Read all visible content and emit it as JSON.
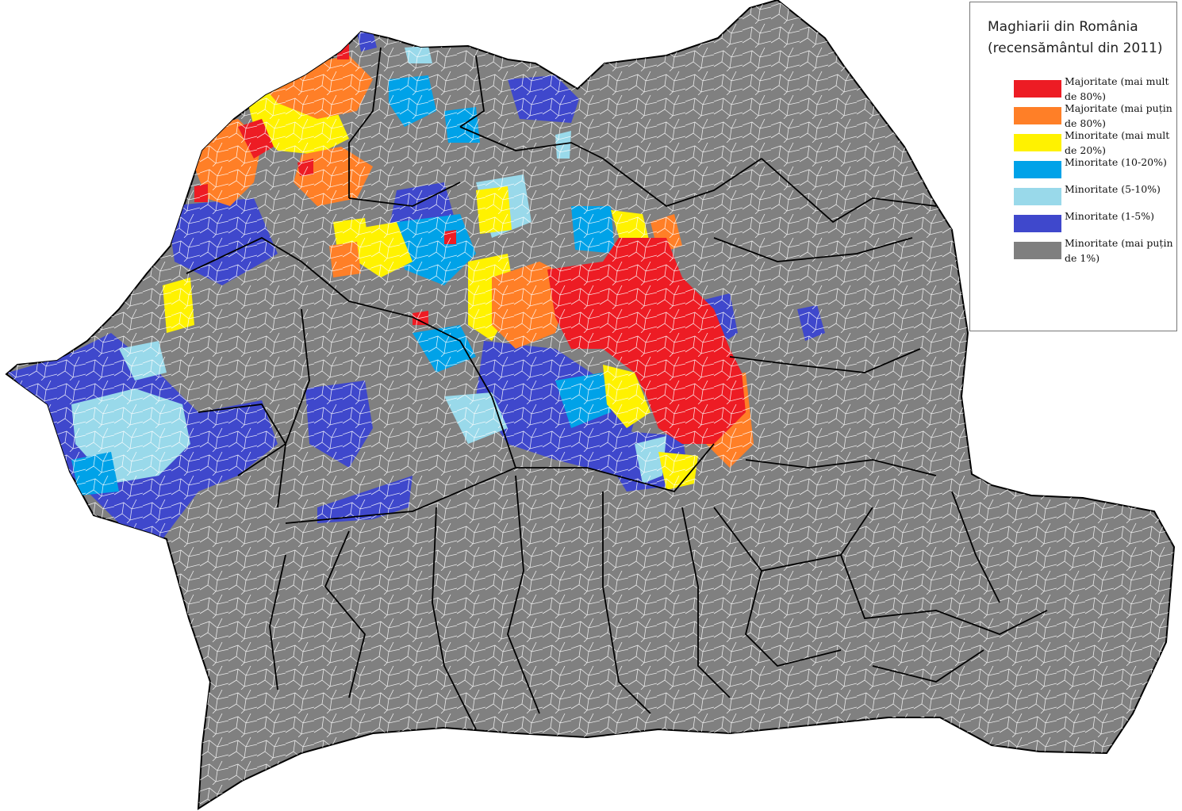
{
  "map": {
    "title_line1": "Maghiarii din România",
    "title_line2": "(recensământul din 2011)",
    "base_color": "#808080",
    "border_color": "#000000",
    "legend": [
      {
        "label": "Majoritate (mai mult de 80%)",
        "color": "#ed1c24"
      },
      {
        "label": "Majoritate (mai puțin de 80%)",
        "color": "#ff7f27"
      },
      {
        "label": "Minoritate (mai mult de 20%)",
        "color": "#fff200"
      },
      {
        "label": "Minoritate (10-20%)",
        "color": "#00a2e8"
      },
      {
        "label": "Minoritate (5-10%)",
        "color": "#99d9ea"
      },
      {
        "label": "Minoritate (1-5%)",
        "color": "#3f48cc"
      },
      {
        "label": "Minoritate (mai puțin de 1%)",
        "color": "#7f7f7f"
      }
    ]
  }
}
